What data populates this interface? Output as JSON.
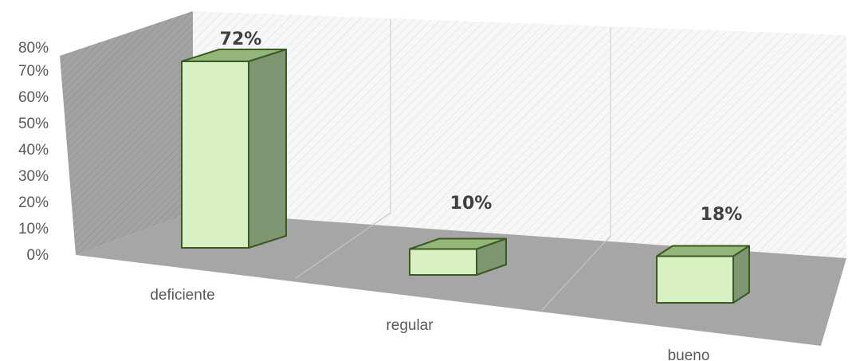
{
  "chart_data": {
    "type": "bar",
    "categories": [
      "deficiente",
      "regular",
      "bueno"
    ],
    "values": [
      72,
      10,
      18
    ],
    "data_labels": [
      "72%",
      "10%",
      "18%"
    ],
    "y_ticks": [
      "0%",
      "10%",
      "20%",
      "30%",
      "40%",
      "50%",
      "60%",
      "70%",
      "80%"
    ],
    "ylim": [
      0,
      80
    ],
    "style": "3d-column",
    "grid": true,
    "legend": "none",
    "colors": {
      "bar_front": "#d8f0c2",
      "bar_top": "#95b67a",
      "bar_side": "#7f9672",
      "bar_edge": "#3a5a22",
      "floor": "#a6a6a6",
      "left_wall": "#9a9a9a",
      "back_wall": "#f4f4f4"
    }
  }
}
